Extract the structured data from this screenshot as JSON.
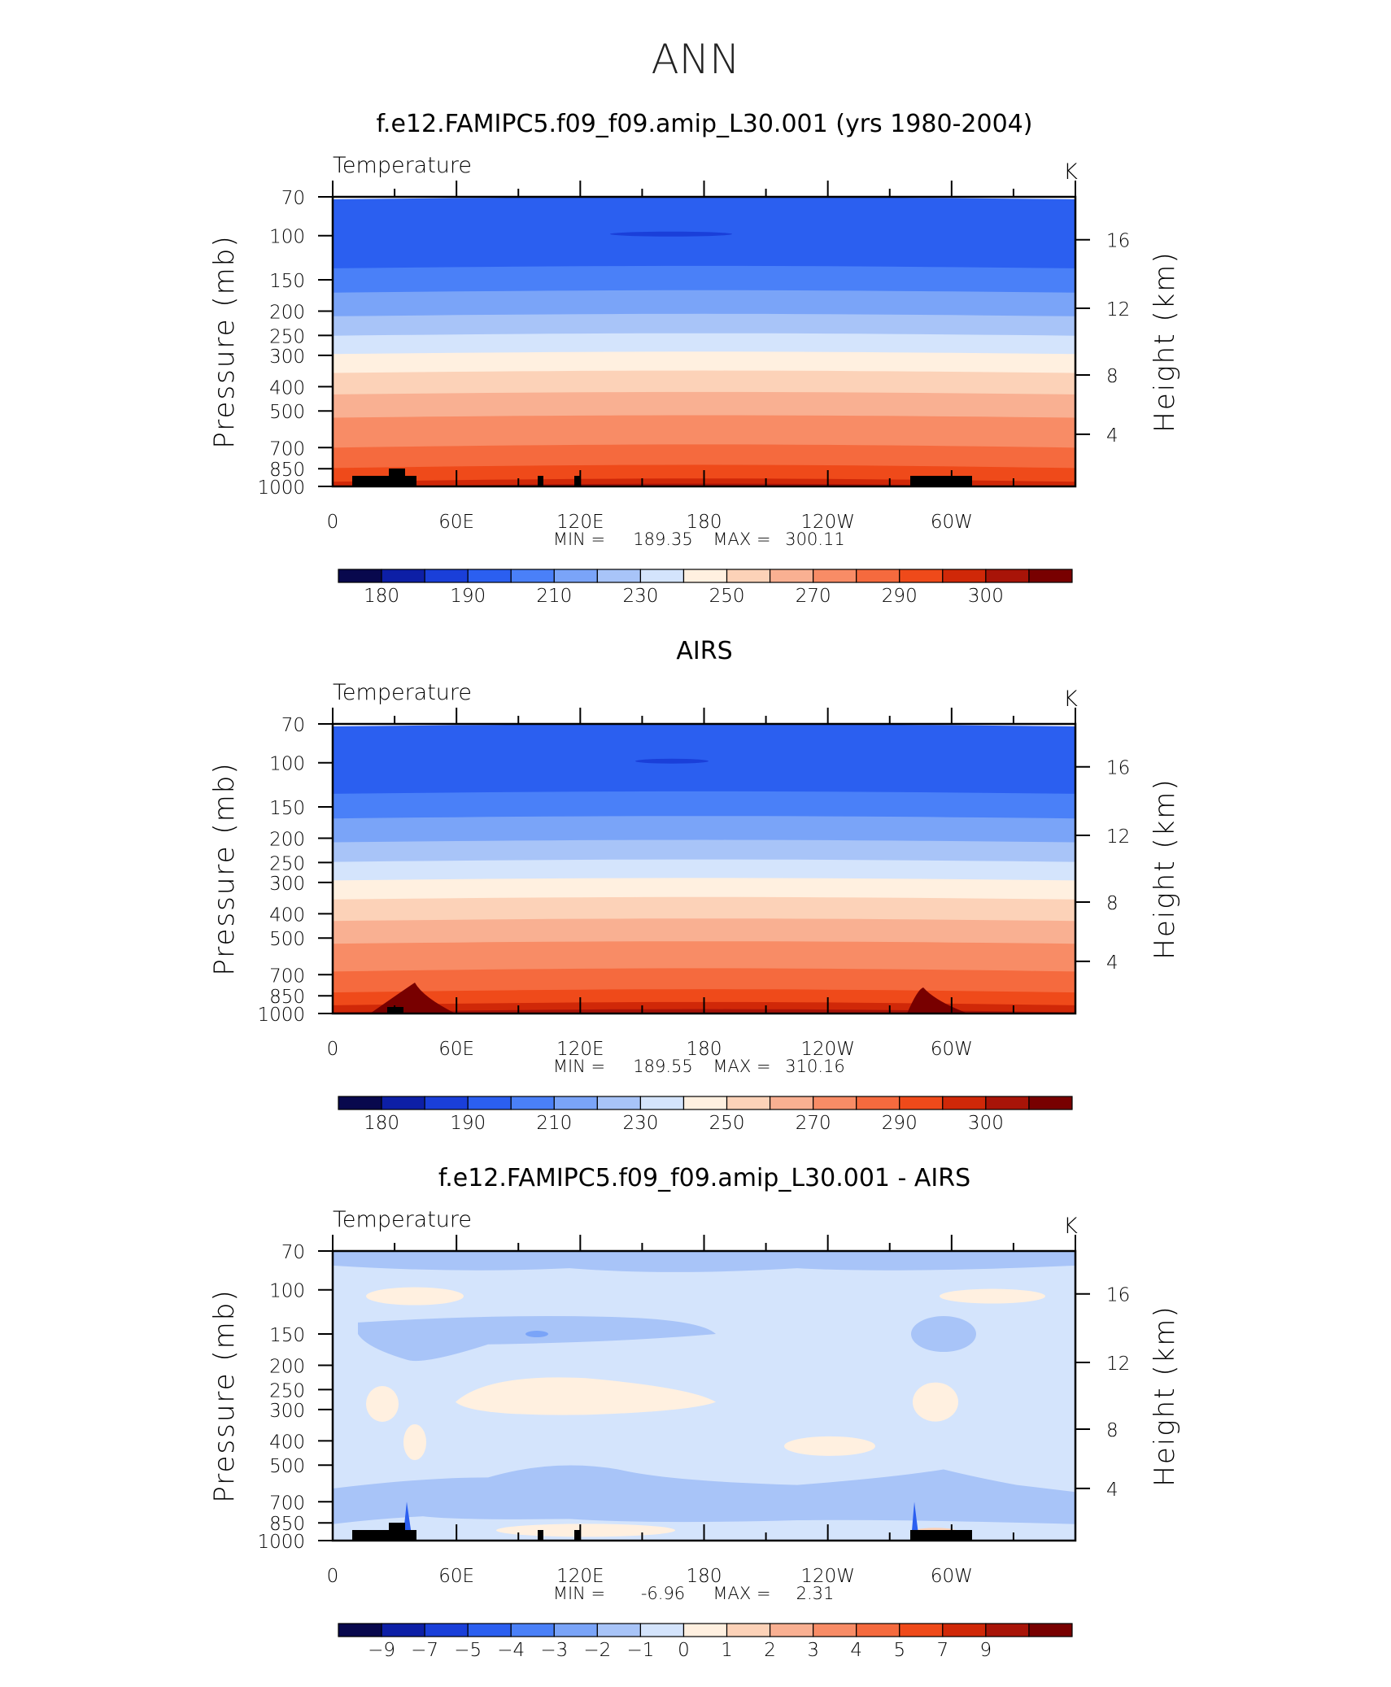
{
  "page": {
    "title": "ANN"
  },
  "chart_data": [
    {
      "type": "contour",
      "title": "f.e12.FAMIPC5.f09_f09.amip_L30.001 (yrs 1980-2004)",
      "left_label": "Temperature",
      "units": "K",
      "ylabel": "Pressure (mb)",
      "y2label": "Height (km)",
      "y_ticks": [
        "70",
        "100",
        "150",
        "200",
        "250",
        "300",
        "400",
        "500",
        "700",
        "850",
        "1000"
      ],
      "y2_ticks": [
        "16",
        "12",
        "8",
        "4"
      ],
      "x_ticks": [
        "0",
        "60E",
        "120E",
        "180",
        "120W",
        "60W"
      ],
      "ylim": [
        1000,
        70
      ],
      "stats": {
        "min_label": "MIN",
        "min": "189.35",
        "max_label": "MAX",
        "max": "300.11"
      },
      "colorbar": {
        "labels": [
          "180",
          "190",
          "210",
          "230",
          "250",
          "270",
          "290",
          "300"
        ],
        "colors": [
          "#08084d",
          "#0d1fa6",
          "#1a3fd9",
          "#2b5ff0",
          "#4a80f8",
          "#7aa4f8",
          "#a8c4f8",
          "#d4e4fc",
          "#fff0e0",
          "#fcd2b8",
          "#f9b092",
          "#f88c66",
          "#f56a3e",
          "#ef4a1a",
          "#d02808",
          "#a81408",
          "#780000"
        ]
      },
      "bands": [
        {
          "p": 70,
          "c": 3
        },
        {
          "p": 132,
          "c": 4
        },
        {
          "p": 165,
          "c": 5
        },
        {
          "p": 205,
          "c": 6
        },
        {
          "p": 245,
          "c": 7
        },
        {
          "p": 290,
          "c": 8
        },
        {
          "p": 345,
          "c": 9
        },
        {
          "p": 420,
          "c": 10
        },
        {
          "p": 520,
          "c": 11
        },
        {
          "p": 680,
          "c": 12
        },
        {
          "p": 820,
          "c": 13
        },
        {
          "p": 930,
          "c": 14
        },
        {
          "p": 975,
          "c": 15
        }
      ]
    },
    {
      "type": "contour",
      "title": "AIRS",
      "left_label": "Temperature",
      "units": "K",
      "ylabel": "Pressure (mb)",
      "y2label": "Height (km)",
      "y_ticks": [
        "70",
        "100",
        "150",
        "200",
        "250",
        "300",
        "400",
        "500",
        "700",
        "850",
        "1000"
      ],
      "y2_ticks": [
        "16",
        "12",
        "8",
        "4"
      ],
      "x_ticks": [
        "0",
        "60E",
        "120E",
        "180",
        "120W",
        "60W"
      ],
      "ylim": [
        1000,
        70
      ],
      "stats": {
        "min_label": "MIN",
        "min": "189.55",
        "max_label": "MAX",
        "max": "310.16"
      },
      "colorbar": {
        "labels": [
          "180",
          "190",
          "210",
          "230",
          "250",
          "270",
          "290",
          "300"
        ],
        "colors": [
          "#08084d",
          "#0d1fa6",
          "#1a3fd9",
          "#2b5ff0",
          "#4a80f8",
          "#7aa4f8",
          "#a8c4f8",
          "#d4e4fc",
          "#fff0e0",
          "#fcd2b8",
          "#f9b092",
          "#f88c66",
          "#f56a3e",
          "#ef4a1a",
          "#d02808",
          "#a81408",
          "#780000"
        ]
      },
      "bands": [
        {
          "p": 70,
          "c": 3
        },
        {
          "p": 130,
          "c": 4
        },
        {
          "p": 163,
          "c": 5
        },
        {
          "p": 203,
          "c": 6
        },
        {
          "p": 243,
          "c": 7
        },
        {
          "p": 288,
          "c": 8
        },
        {
          "p": 343,
          "c": 9
        },
        {
          "p": 418,
          "c": 10
        },
        {
          "p": 515,
          "c": 11
        },
        {
          "p": 660,
          "c": 12
        },
        {
          "p": 800,
          "c": 13
        },
        {
          "p": 900,
          "c": 14
        },
        {
          "p": 960,
          "c": 15
        }
      ]
    },
    {
      "type": "contour",
      "title": "f.e12.FAMIPC5.f09_f09.amip_L30.001 - AIRS",
      "left_label": "Temperature",
      "units": "K",
      "ylabel": "Pressure (mb)",
      "y2label": "Height (km)",
      "y_ticks": [
        "70",
        "100",
        "150",
        "200",
        "250",
        "300",
        "400",
        "500",
        "700",
        "850",
        "1000"
      ],
      "y2_ticks": [
        "16",
        "12",
        "8",
        "4"
      ],
      "x_ticks": [
        "0",
        "60E",
        "120E",
        "180",
        "120W",
        "60W"
      ],
      "ylim": [
        1000,
        70
      ],
      "stats": {
        "min_label": "MIN",
        "min": "-6.96",
        "max_label": "MAX",
        "max": "2.31"
      },
      "colorbar": {
        "labels": [
          "-9",
          "-7",
          "-5",
          "-4",
          "-3",
          "-2",
          "-1",
          "0",
          "1",
          "2",
          "3",
          "4",
          "5",
          "7",
          "9"
        ],
        "colors": [
          "#08084d",
          "#0d1fa6",
          "#1a3fd9",
          "#2b5ff0",
          "#4a80f8",
          "#7aa4f8",
          "#a8c4f8",
          "#d4e4fc",
          "#fff0e0",
          "#fcd2b8",
          "#f9b092",
          "#f88c66",
          "#f56a3e",
          "#ef4a1a",
          "#d02808",
          "#a81408",
          "#780000"
        ]
      }
    }
  ]
}
